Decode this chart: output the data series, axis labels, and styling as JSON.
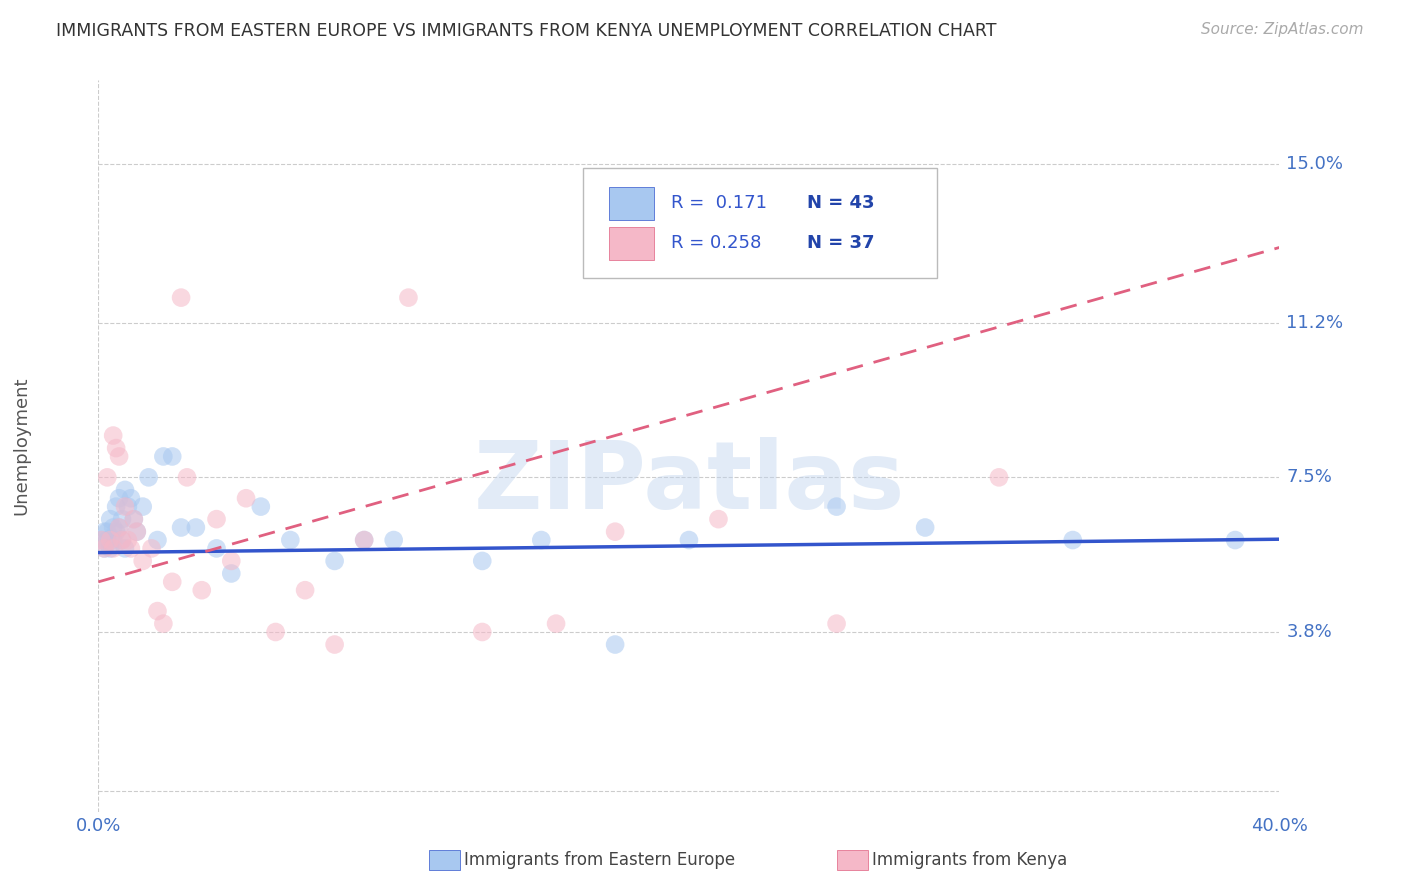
{
  "title": "IMMIGRANTS FROM EASTERN EUROPE VS IMMIGRANTS FROM KENYA UNEMPLOYMENT CORRELATION CHART",
  "source": "Source: ZipAtlas.com",
  "ylabel": "Unemployment",
  "ytick_vals": [
    0.0,
    0.038,
    0.075,
    0.112,
    0.15
  ],
  "ytick_labels": [
    "",
    "3.8%",
    "7.5%",
    "11.2%",
    "15.0%"
  ],
  "xlim": [
    0.0,
    0.4
  ],
  "ylim": [
    -0.005,
    0.17
  ],
  "color_eastern": "#A8C8F0",
  "color_kenya": "#F5B8C8",
  "trend_eastern_color": "#3355CC",
  "trend_kenya_color": "#E06080",
  "watermark": "ZIPatlas",
  "eastern_europe_x": [
    0.001,
    0.002,
    0.002,
    0.003,
    0.003,
    0.004,
    0.004,
    0.005,
    0.005,
    0.006,
    0.006,
    0.007,
    0.007,
    0.008,
    0.008,
    0.009,
    0.009,
    0.01,
    0.011,
    0.012,
    0.013,
    0.015,
    0.017,
    0.02,
    0.022,
    0.025,
    0.028,
    0.033,
    0.04,
    0.045,
    0.055,
    0.065,
    0.08,
    0.09,
    0.1,
    0.13,
    0.15,
    0.175,
    0.2,
    0.25,
    0.28,
    0.33,
    0.385
  ],
  "eastern_europe_y": [
    0.06,
    0.062,
    0.058,
    0.06,
    0.062,
    0.065,
    0.058,
    0.063,
    0.06,
    0.068,
    0.062,
    0.07,
    0.063,
    0.065,
    0.06,
    0.072,
    0.058,
    0.068,
    0.07,
    0.065,
    0.062,
    0.068,
    0.075,
    0.06,
    0.08,
    0.08,
    0.063,
    0.063,
    0.058,
    0.052,
    0.068,
    0.06,
    0.055,
    0.06,
    0.06,
    0.055,
    0.06,
    0.035,
    0.06,
    0.068,
    0.063,
    0.06,
    0.06
  ],
  "kenya_x": [
    0.001,
    0.002,
    0.003,
    0.004,
    0.005,
    0.005,
    0.006,
    0.007,
    0.007,
    0.008,
    0.009,
    0.01,
    0.011,
    0.012,
    0.013,
    0.015,
    0.018,
    0.02,
    0.022,
    0.025,
    0.028,
    0.03,
    0.035,
    0.04,
    0.045,
    0.05,
    0.06,
    0.07,
    0.08,
    0.09,
    0.105,
    0.13,
    0.155,
    0.175,
    0.21,
    0.25,
    0.305
  ],
  "kenya_y": [
    0.06,
    0.058,
    0.075,
    0.06,
    0.085,
    0.058,
    0.082,
    0.08,
    0.063,
    0.06,
    0.068,
    0.06,
    0.058,
    0.065,
    0.062,
    0.055,
    0.058,
    0.043,
    0.04,
    0.05,
    0.118,
    0.075,
    0.048,
    0.065,
    0.055,
    0.07,
    0.038,
    0.048,
    0.035,
    0.06,
    0.118,
    0.038,
    0.04,
    0.062,
    0.065,
    0.04,
    0.075
  ],
  "scatter_size": 180,
  "scatter_alpha": 0.55,
  "background_color": "#FFFFFF",
  "grid_color": "#CCCCCC",
  "title_color": "#333333",
  "axis_color": "#4472C4",
  "source_color": "#AAAAAA"
}
